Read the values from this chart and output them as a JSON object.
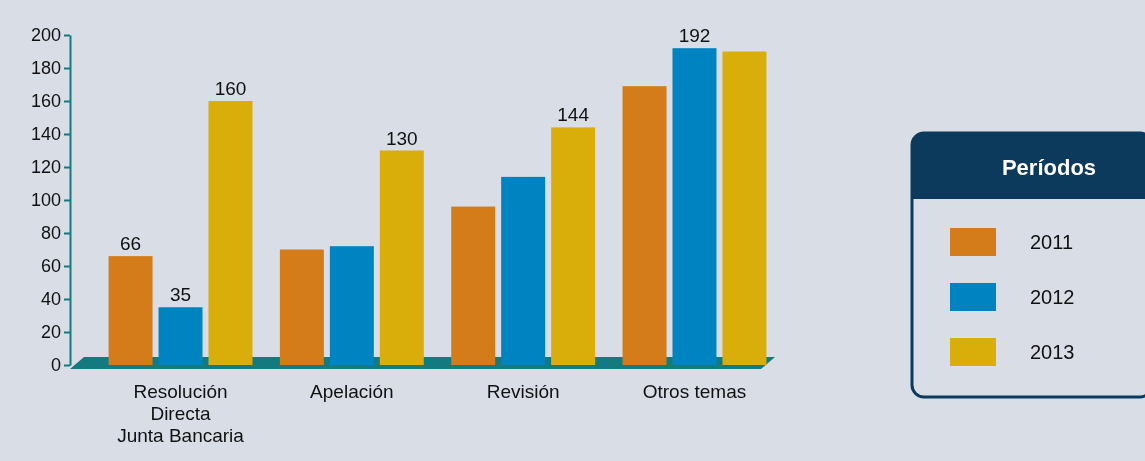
{
  "chart_data": {
    "type": "bar",
    "legend_title": "Períodos",
    "legend": "right",
    "categories": [
      "Resolución\nDirecta\nJunta Bancaria",
      "Apelación",
      "Revisión",
      "Otros temas"
    ],
    "ylim": [
      0,
      200
    ],
    "yticks": [
      0,
      20,
      40,
      60,
      80,
      100,
      120,
      140,
      160,
      180,
      200
    ],
    "series": [
      {
        "name": "2011",
        "color": "#d47c1a",
        "values": [
          66,
          70,
          96,
          169
        ],
        "value_labels": [
          "66",
          null,
          null,
          null
        ]
      },
      {
        "name": "2012",
        "color": "#0083c1",
        "values": [
          35,
          72,
          114,
          192
        ],
        "value_labels": [
          "35",
          null,
          null,
          "192"
        ]
      },
      {
        "name": "2013",
        "color": "#d9ae0a",
        "values": [
          160,
          130,
          144,
          190
        ],
        "value_labels": [
          "160",
          "130",
          "144",
          null
        ]
      }
    ]
  }
}
